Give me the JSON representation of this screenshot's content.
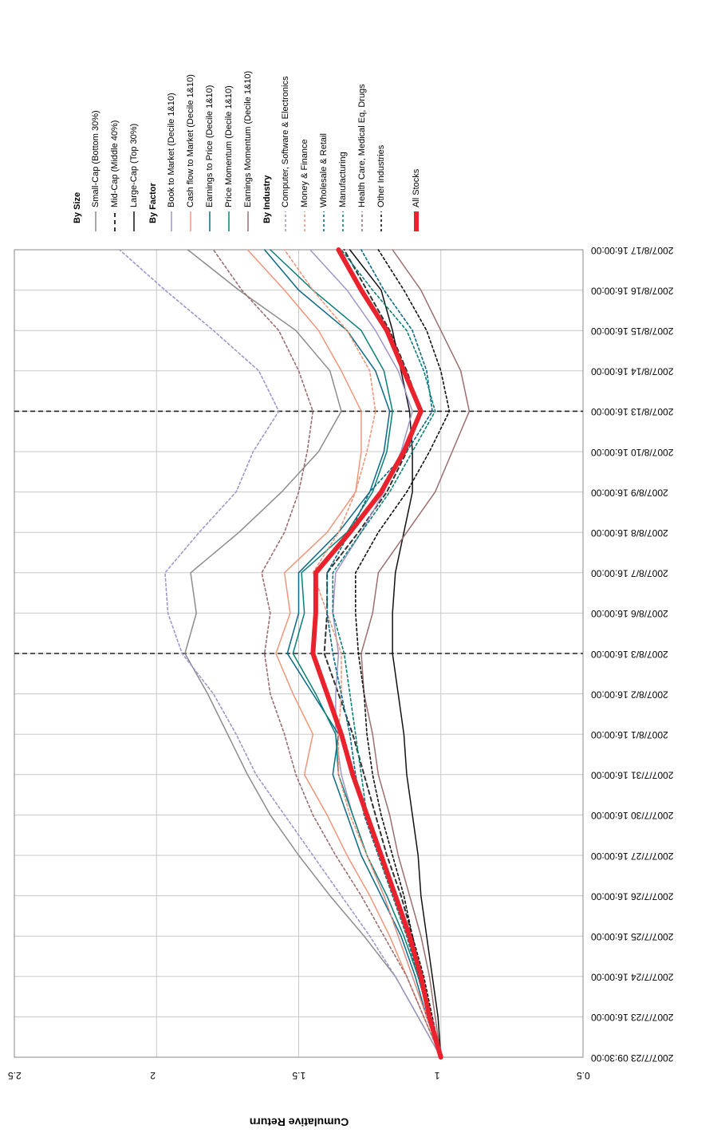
{
  "chart_data": {
    "type": "line",
    "y_axis_label": "Cumulative Return",
    "categories": [
      "2007/7/23 09:30:00",
      "2007/7/23 16:00:00",
      "2007/7/24 16:00:00",
      "2007/7/25 16:00:00",
      "2007/7/26 16:00:00",
      "2007/7/27 16:00:00",
      "2007/7/30 16:00:00",
      "2007/7/31 16:00:00",
      "2007/8/1 16:00:00",
      "2007/8/2 16:00:00",
      "2007/8/3 16:00:00",
      "2007/8/6 16:00:00",
      "2007/8/7 16:00:00",
      "2007/8/8 16:00:00",
      "2007/8/9 16:00:00",
      "2007/8/10 16:00:00",
      "2007/8/13 16:00:00",
      "2007/8/14 16:00:00",
      "2007/8/15 16:00:00",
      "2007/8/16 16:00:00",
      "2007/8/17 16:00:00"
    ],
    "ylim": [
      0.5,
      2.5
    ],
    "yticks": [
      0.5,
      1,
      1.5,
      2,
      2.5
    ],
    "grid": true,
    "reference_lines": [
      "2007/8/3 16:00:00",
      "2007/8/13 16:00:00"
    ],
    "series": [
      {
        "name": "Small-Cap (Bottom 30%)",
        "group": "By Size",
        "color": "#8c8c8c",
        "line_style": "solid",
        "values": [
          1,
          1.08,
          1.16,
          1.27,
          1.39,
          1.5,
          1.6,
          1.68,
          1.75,
          1.82,
          1.9,
          1.86,
          1.88,
          1.71,
          1.56,
          1.43,
          1.35,
          1.39,
          1.51,
          1.71,
          1.89
        ]
      },
      {
        "name": "Mid-Cap (Middle 40%)",
        "group": "By Size",
        "color": "#333333",
        "line_style": "dashed",
        "values": [
          1,
          1.04,
          1.07,
          1.1,
          1.14,
          1.19,
          1.23,
          1.27,
          1.31,
          1.36,
          1.41,
          1.4,
          1.4,
          1.29,
          1.19,
          1.12,
          1.07,
          1.12,
          1.18,
          1.26,
          1.34
        ]
      },
      {
        "name": "Large-Cap (Top 30%)",
        "group": "By Size",
        "color": "#111111",
        "line_style": "solid",
        "values": [
          1,
          1.01,
          1.03,
          1.05,
          1.07,
          1.08,
          1.1,
          1.12,
          1.13,
          1.15,
          1.17,
          1.17,
          1.16,
          1.13,
          1.1,
          1.1,
          1.11,
          1.14,
          1.17,
          1.21,
          1.32
        ]
      },
      {
        "name": "Book to Market (Decile 1&10)",
        "group": "By Factor",
        "color": "#9f97c9",
        "line_style": "solid",
        "values": [
          1,
          1.05,
          1.1,
          1.15,
          1.2,
          1.26,
          1.31,
          1.35,
          1.37,
          1.37,
          1.36,
          1.38,
          1.37,
          1.28,
          1.2,
          1.14,
          1.1,
          1.15,
          1.23,
          1.33,
          1.46
        ]
      },
      {
        "name": "Cash flow to Market (Decile 1&10)",
        "group": "By Factor",
        "color": "#f0967a",
        "line_style": "solid",
        "values": [
          1,
          1.06,
          1.12,
          1.18,
          1.25,
          1.33,
          1.4,
          1.48,
          1.45,
          1.52,
          1.58,
          1.53,
          1.55,
          1.4,
          1.3,
          1.28,
          1.28,
          1.35,
          1.43,
          1.55,
          1.68
        ]
      },
      {
        "name": "Earnings to Price (Decile 1&10)",
        "group": "By Factor",
        "color": "#0b6a86",
        "line_style": "solid",
        "values": [
          1,
          1.05,
          1.09,
          1.14,
          1.21,
          1.28,
          1.33,
          1.38,
          1.36,
          1.45,
          1.54,
          1.5,
          1.5,
          1.36,
          1.25,
          1.2,
          1.18,
          1.23,
          1.33,
          1.5,
          1.62
        ]
      },
      {
        "name": "Price Momentum (Decile 1&10)",
        "group": "By Factor",
        "color": "#0a8078",
        "line_style": "solid",
        "values": [
          1,
          1.04,
          1.08,
          1.13,
          1.19,
          1.26,
          1.31,
          1.36,
          1.37,
          1.44,
          1.52,
          1.48,
          1.49,
          1.33,
          1.24,
          1.19,
          1.17,
          1.2,
          1.28,
          1.45,
          1.6
        ]
      },
      {
        "name": "Earnings Momentum (Decile 1&10)",
        "group": "By Factor",
        "color": "#9c6f6f",
        "line_style": "solid",
        "values": [
          1,
          1.02,
          1.04,
          1.07,
          1.11,
          1.15,
          1.18,
          1.22,
          1.24,
          1.27,
          1.28,
          1.24,
          1.22,
          1.12,
          1.02,
          0.96,
          0.9,
          0.93,
          1,
          1.07,
          1.17
        ]
      },
      {
        "name": "Computer, Software & Electronics",
        "group": "By Industry",
        "color": "#9f97c9",
        "line_style": "dotted",
        "values": [
          1,
          1.08,
          1.16,
          1.25,
          1.35,
          1.45,
          1.55,
          1.65,
          1.72,
          1.8,
          1.91,
          1.96,
          1.97,
          1.85,
          1.72,
          1.66,
          1.57,
          1.64,
          1.8,
          1.97,
          2.13
        ]
      },
      {
        "name": "Money & Finance",
        "group": "By Industry",
        "color": "#f0967a",
        "line_style": "dotted",
        "values": [
          1,
          1.05,
          1.1,
          1.15,
          1.2,
          1.26,
          1.32,
          1.36,
          1.36,
          1.35,
          1.35,
          1.4,
          1.45,
          1.36,
          1.3,
          1.26,
          1.23,
          1.25,
          1.33,
          1.45,
          1.55
        ]
      },
      {
        "name": "Wholesale & Retail",
        "group": "By Industry",
        "color": "#0b6a86",
        "line_style": "dotted",
        "values": [
          1,
          1.04,
          1.08,
          1.12,
          1.17,
          1.22,
          1.27,
          1.3,
          1.32,
          1.35,
          1.38,
          1.4,
          1.4,
          1.32,
          1.25,
          1.12,
          1.03,
          1.05,
          1.1,
          1.2,
          1.28
        ]
      },
      {
        "name": "Manufacturing",
        "group": "By Industry",
        "color": "#0a8078",
        "line_style": "dotted",
        "values": [
          1,
          1.04,
          1.08,
          1.12,
          1.17,
          1.22,
          1.26,
          1.28,
          1.3,
          1.32,
          1.34,
          1.38,
          1.38,
          1.28,
          1.18,
          1.1,
          1.02,
          1.06,
          1.12,
          1.24,
          1.35
        ]
      },
      {
        "name": "Health Care, Medical Eq, Drugs",
        "group": "By Industry",
        "color": "#9c6f6f",
        "line_style": "dotted",
        "values": [
          1,
          1.06,
          1.12,
          1.2,
          1.28,
          1.37,
          1.45,
          1.51,
          1.55,
          1.6,
          1.62,
          1.6,
          1.63,
          1.55,
          1.5,
          1.47,
          1.45,
          1.5,
          1.57,
          1.7,
          1.8
        ]
      },
      {
        "name": "Other Industries",
        "group": "By Industry",
        "color": "#111111",
        "line_style": "dotted",
        "values": [
          1,
          1.03,
          1.06,
          1.1,
          1.13,
          1.17,
          1.21,
          1.24,
          1.26,
          1.27,
          1.29,
          1.3,
          1.3,
          1.22,
          1.12,
          1.04,
          0.97,
          1,
          1.05,
          1.13,
          1.22
        ]
      },
      {
        "name": "All Stocks",
        "color": "#e8232e",
        "line_style": "bold",
        "values": [
          1,
          1.04,
          1.07,
          1.11,
          1.16,
          1.21,
          1.26,
          1.31,
          1.35,
          1.4,
          1.45,
          1.44,
          1.44,
          1.32,
          1.21,
          1.13,
          1.07,
          1.13,
          1.19,
          1.28,
          1.36
        ]
      }
    ]
  }
}
